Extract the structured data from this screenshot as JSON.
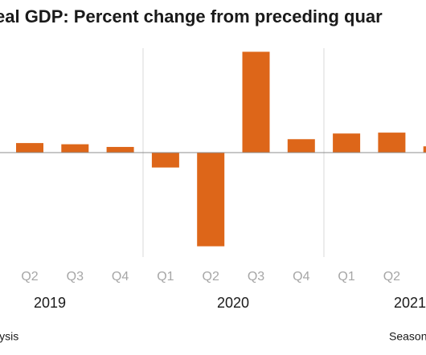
{
  "chart_data": {
    "type": "bar",
    "title": "eal GDP:  Percent change from preceding quar",
    "categories": [
      "Q2",
      "Q3",
      "Q4",
      "Q1",
      "Q2",
      "Q3",
      "Q4",
      "Q1",
      "Q2",
      null
    ],
    "values": [
      3.2,
      2.8,
      1.9,
      -5.0,
      -31.4,
      33.8,
      4.5,
      6.4,
      6.7,
      2.1
    ],
    "years": [
      "2019",
      "2020",
      "2021"
    ],
    "color": "#dd6619",
    "ylim": [
      -35,
      35
    ],
    "source_fragment": "lysis",
    "note_fragment": "Season"
  }
}
